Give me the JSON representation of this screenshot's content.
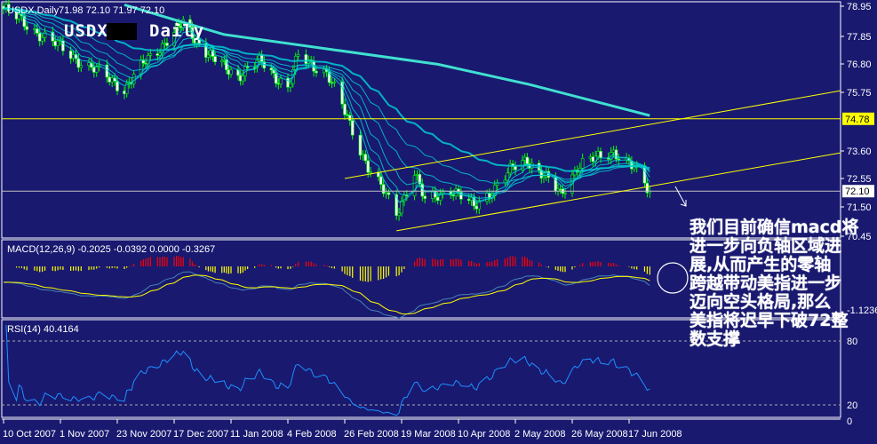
{
  "chart_data": {
    "type": "candlestick",
    "title": "USDX,Daily",
    "ohlc_label": "71.98 72.10 71.97 72.10",
    "watermark": "USDX",
    "watermark_suffix": "Daily",
    "price_axis_ticks": [
      "78.95",
      "77.85",
      "76.80",
      "75.75",
      "73.60",
      "72.55",
      "71.50",
      "70.45"
    ],
    "ylim": [
      70.45,
      78.95
    ],
    "x_ticks": [
      "10 Oct 2007",
      "1 Nov 2007",
      "23 Nov 2007",
      "17 Dec 2007",
      "11 Jan 2008",
      "4 Feb 2008",
      "26 Feb 2008",
      "19 Mar 2008",
      "10 Apr 2008",
      "2 May 2008",
      "26 May 2008",
      "17 Jun 2008"
    ],
    "close_approx": [
      [
        "10 Oct 2007",
        78.85
      ],
      [
        "23 Oct 2007",
        78.0
      ],
      [
        "9 Nov 2007",
        76.9
      ],
      [
        "26 Nov 2007",
        75.9
      ],
      [
        "6 Dec 2007",
        77.0
      ],
      [
        "21 Dec 2007",
        78.3
      ],
      [
        "3 Jan 2008",
        77.0
      ],
      [
        "14 Jan 2008",
        76.4
      ],
      [
        "24 Jan 2008",
        76.9
      ],
      [
        "4 Feb 2008",
        75.9
      ],
      [
        "8 Feb 2008",
        77.1
      ],
      [
        "19 Feb 2008",
        76.5
      ],
      [
        "27 Feb 2008",
        74.8
      ],
      [
        "6 Mar 2008",
        73.0
      ],
      [
        "17 Mar 2008",
        71.3
      ],
      [
        "24 Mar 2008",
        72.8
      ],
      [
        "28 Mar 2008",
        71.7
      ],
      [
        "7 Apr 2008",
        72.2
      ],
      [
        "16 Apr 2008",
        71.5
      ],
      [
        "2 May 2008",
        73.0
      ],
      [
        "7 May 2008",
        73.3
      ],
      [
        "21 May 2008",
        72.0
      ],
      [
        "28 May 2008",
        73.0
      ],
      [
        "11 Jun 2008",
        73.6
      ],
      [
        "19 Jun 2008",
        72.9
      ],
      [
        "25 Jun 2008",
        72.1
      ]
    ],
    "long_ma_approx": [
      [
        "26 Nov 2007",
        79.0
      ],
      [
        "8 Jan 2008",
        77.9
      ],
      [
        "2 Apr 2008",
        76.8
      ],
      [
        "8 May 2008",
        76.05
      ],
      [
        "25 Jun 2008",
        74.9
      ]
    ],
    "horizontal_lines": [
      {
        "value": 74.78,
        "label": "74.78",
        "color": "#ffff00"
      },
      {
        "value": 72.1,
        "label": "72.10",
        "color": "#c0c0c0"
      }
    ],
    "channel_lines": [
      {
        "from": [
          "26 Feb 2008",
          72.57
        ],
        "to": [
          "right-edge",
          75.82
        ]
      },
      {
        "from": [
          "17 Mar 2008",
          70.63
        ],
        "to": [
          "right-edge",
          73.52
        ]
      }
    ],
    "macd": {
      "label": "MACD(12,26,9) -0.2025 -0.0392 0.0000 -0.3267",
      "axis_ticks": [
        "-1.1236"
      ]
    },
    "rsi": {
      "label": "RSI(14) 40.4164",
      "axis_ticks": [
        "80",
        "20",
        "0"
      ],
      "levels": [
        80,
        20
      ]
    },
    "colors": {
      "background": "#191970",
      "bull": "#00ff00",
      "bear": "#ffffff",
      "ma": "#00ced1",
      "long_ma": "#40e0d0",
      "macd_pos": "#ff0000",
      "macd_neg": "#ffff00",
      "signal": "#ffff00",
      "rsi": "#1e90ff"
    }
  },
  "annotation": {
    "text": "我们目前确信macd将\n进一步向负轴区域进\n展,从而产生的零轴\n跨越带动美指进一步\n迈向空头格局,那么\n美指将迟早下破72整\n数支撑"
  }
}
